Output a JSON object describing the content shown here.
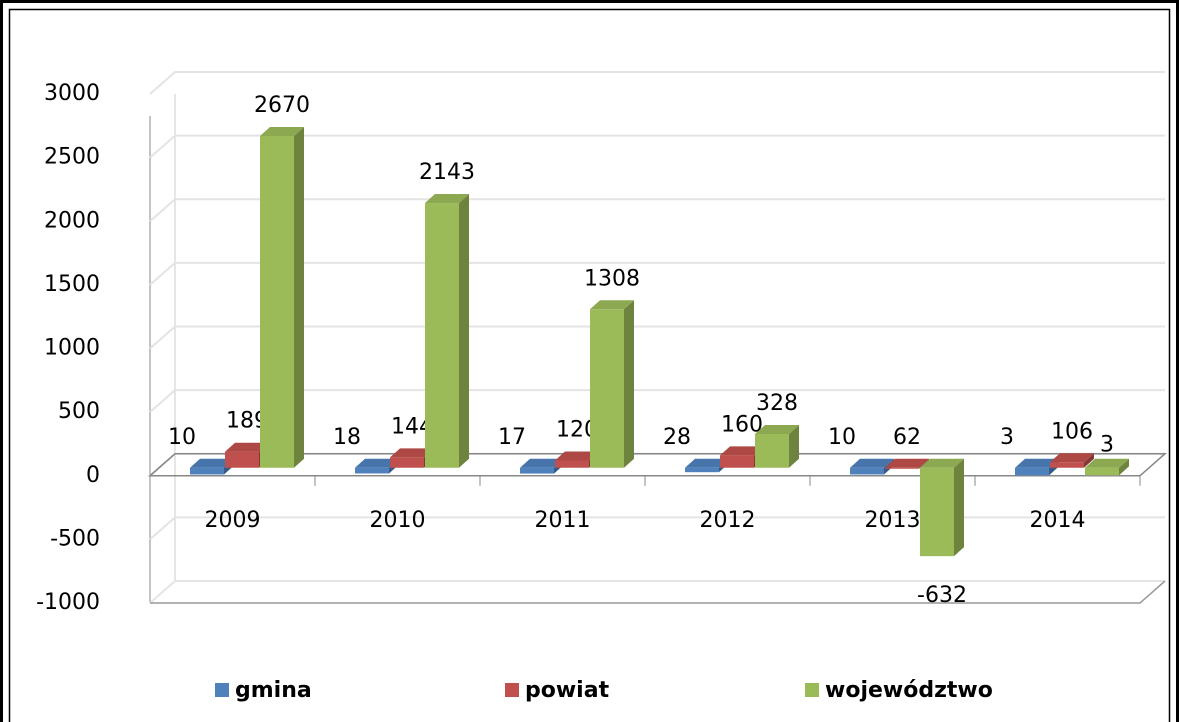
{
  "chart_data": {
    "type": "bar3d",
    "categories": [
      "2009",
      "2010",
      "2011",
      "2012",
      "2013",
      "2014"
    ],
    "series": [
      {
        "name": "gmina",
        "color": "#4f81bd",
        "values": [
          10,
          18,
          17,
          28,
          10,
          3
        ]
      },
      {
        "name": "powiat",
        "color": "#c0504d",
        "values": [
          189,
          144,
          120,
          160,
          62,
          106
        ]
      },
      {
        "name": "województwo",
        "color": "#9bbb59",
        "values": [
          2670,
          2143,
          1308,
          328,
          -632,
          3
        ]
      }
    ],
    "ylim": [
      -1000,
      3000
    ],
    "yticks": [
      -1000,
      -500,
      0,
      500,
      1000,
      1500,
      2000,
      2500,
      3000
    ],
    "grid": true,
    "legend": "bottom"
  }
}
